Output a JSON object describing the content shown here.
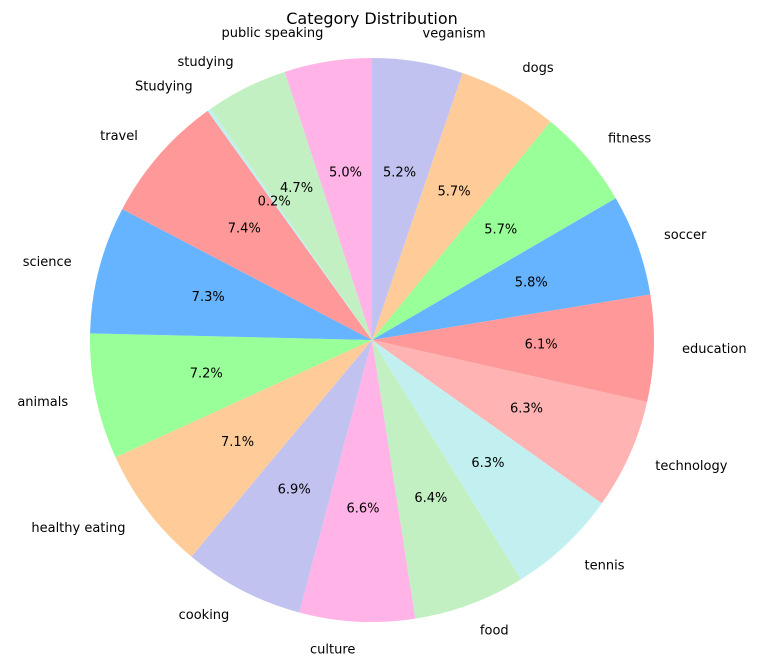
{
  "chart_data": {
    "type": "pie",
    "title": "Category Distribution",
    "start_angle_deg": 90,
    "direction": "clockwise",
    "slices": [
      {
        "label": "veganism",
        "value": 5.2,
        "pct_label": "5.2%",
        "color": "#c2c2f0"
      },
      {
        "label": "dogs",
        "value": 5.7,
        "pct_label": "5.7%",
        "color": "#ffcc99"
      },
      {
        "label": "fitness",
        "value": 5.7,
        "pct_label": "5.7%",
        "color": "#99ff99"
      },
      {
        "label": "soccer",
        "value": 5.8,
        "pct_label": "5.8%",
        "color": "#66b3ff"
      },
      {
        "label": "education",
        "value": 6.1,
        "pct_label": "6.1%",
        "color": "#ff9999"
      },
      {
        "label": "technology",
        "value": 6.3,
        "pct_label": "6.3%",
        "color": "#ffb3b3"
      },
      {
        "label": "tennis",
        "value": 6.3,
        "pct_label": "6.3%",
        "color": "#c2f0f0"
      },
      {
        "label": "food",
        "value": 6.4,
        "pct_label": "6.4%",
        "color": "#c2f0c2"
      },
      {
        "label": "culture",
        "value": 6.6,
        "pct_label": "6.6%",
        "color": "#ffb3e6"
      },
      {
        "label": "cooking",
        "value": 6.9,
        "pct_label": "6.9%",
        "color": "#c2c2f0"
      },
      {
        "label": "healthy eating",
        "value": 7.1,
        "pct_label": "7.1%",
        "color": "#ffcc99"
      },
      {
        "label": "animals",
        "value": 7.2,
        "pct_label": "7.2%",
        "color": "#99ff99"
      },
      {
        "label": "science",
        "value": 7.3,
        "pct_label": "7.3%",
        "color": "#66b3ff"
      },
      {
        "label": "travel",
        "value": 7.4,
        "pct_label": "7.4%",
        "color": "#ff9999"
      },
      {
        "label": "Studying",
        "value": 0.2,
        "pct_label": "0.2%",
        "color": "#c2f0f0"
      },
      {
        "label": "studying",
        "value": 4.7,
        "pct_label": "4.7%",
        "color": "#c2f0c2"
      },
      {
        "label": "public speaking",
        "value": 5.0,
        "pct_label": "5.0%",
        "color": "#ffb3e6"
      }
    ]
  }
}
